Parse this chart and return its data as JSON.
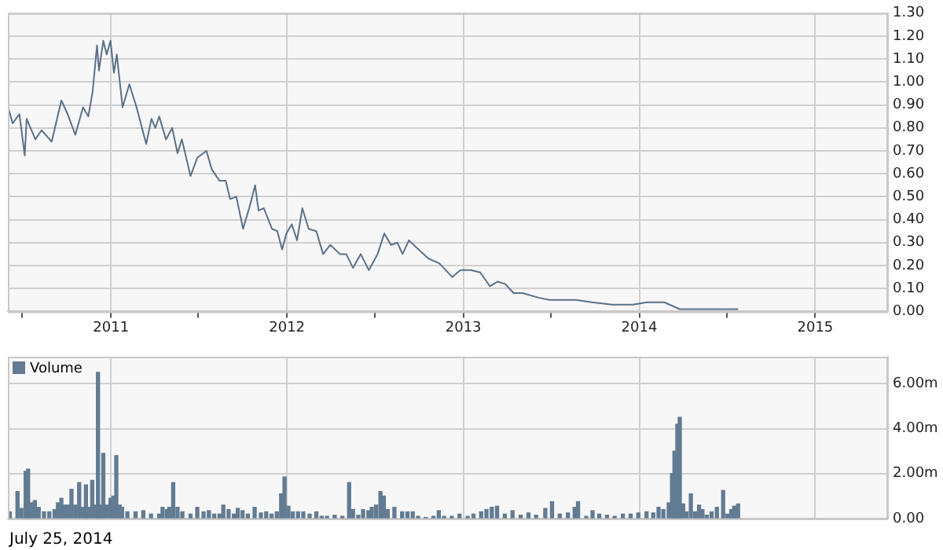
{
  "chart_data": [
    {
      "type": "line",
      "marker": "none",
      "grid": true,
      "xlim": [
        "2010-06-01",
        "2015-06-01"
      ],
      "xticks": [
        {
          "value": "2010-07-01",
          "label": null
        },
        {
          "value": "2011-01-01",
          "label": "2011"
        },
        {
          "value": "2011-07-01",
          "label": null
        },
        {
          "value": "2012-01-01",
          "label": "2012"
        },
        {
          "value": "2012-07-01",
          "label": null
        },
        {
          "value": "2013-01-01",
          "label": "2013"
        },
        {
          "value": "2013-07-01",
          "label": null
        },
        {
          "value": "2014-01-01",
          "label": "2014"
        },
        {
          "value": "2014-07-01",
          "label": null
        },
        {
          "value": "2015-01-01",
          "label": "2015"
        }
      ],
      "ylim": [
        0,
        1.3
      ],
      "yticks": [
        {
          "value": 0,
          "label": "0.00"
        },
        {
          "value": 0.1,
          "label": "0.10"
        },
        {
          "value": 0.2,
          "label": "0.20"
        },
        {
          "value": 0.3,
          "label": "0.30"
        },
        {
          "value": 0.4,
          "label": "0.40"
        },
        {
          "value": 0.5,
          "label": "0.50"
        },
        {
          "value": 0.6,
          "label": "0.60"
        },
        {
          "value": 0.7,
          "label": "0.70"
        },
        {
          "value": 0.8,
          "label": "0.80"
        },
        {
          "value": 0.9,
          "label": "0.90"
        },
        {
          "value": 1.0,
          "label": "1.00"
        },
        {
          "value": 1.1,
          "label": "1.10"
        },
        {
          "value": 1.2,
          "label": "1.20"
        },
        {
          "value": 1.3,
          "label": "1.30"
        }
      ],
      "series": [
        {
          "color": "#5a7189",
          "x": [
            "2010-06-03",
            "2010-06-11",
            "2010-06-25",
            "2010-07-06",
            "2010-07-10",
            "2010-07-28",
            "2010-08-10",
            "2010-08-31",
            "2010-09-20",
            "2010-10-03",
            "2010-10-19",
            "2010-11-04",
            "2010-11-15",
            "2010-11-24",
            "2010-12-03",
            "2010-12-07",
            "2010-12-16",
            "2010-12-23",
            "2010-12-31",
            "2011-01-07",
            "2011-01-13",
            "2011-01-25",
            "2011-02-08",
            "2011-02-23",
            "2011-03-15",
            "2011-03-26",
            "2011-04-03",
            "2011-04-11",
            "2011-04-25",
            "2011-05-08",
            "2011-05-19",
            "2011-05-28",
            "2011-06-15",
            "2011-06-29",
            "2011-07-18",
            "2011-07-29",
            "2011-08-14",
            "2011-08-27",
            "2011-09-05",
            "2011-09-18",
            "2011-10-02",
            "2011-10-16",
            "2011-10-27",
            "2011-11-03",
            "2011-11-14",
            "2011-12-01",
            "2011-12-12",
            "2011-12-22",
            "2011-12-31",
            "2012-01-11",
            "2012-01-22",
            "2012-02-02",
            "2012-02-15",
            "2012-03-02",
            "2012-03-16",
            "2012-03-31",
            "2012-04-20",
            "2012-05-03",
            "2012-05-17",
            "2012-06-02",
            "2012-06-19",
            "2012-07-07",
            "2012-07-21",
            "2012-08-04",
            "2012-08-17",
            "2012-08-28",
            "2012-09-10",
            "2012-09-30",
            "2012-10-21",
            "2012-11-12",
            "2012-12-09",
            "2012-12-26",
            "2013-01-17",
            "2013-02-05",
            "2013-02-25",
            "2013-03-13",
            "2013-03-29",
            "2013-04-15",
            "2013-05-04",
            "2013-06-06",
            "2013-06-29",
            "2013-07-21",
            "2013-08-23",
            "2013-09-25",
            "2013-11-06",
            "2013-12-18",
            "2014-01-17",
            "2014-02-22",
            "2014-03-26",
            "2014-05-11",
            "2014-06-23",
            "2014-07-25"
          ],
          "values": [
            0.88,
            0.82,
            0.86,
            0.68,
            0.84,
            0.75,
            0.79,
            0.74,
            0.92,
            0.86,
            0.77,
            0.89,
            0.85,
            0.96,
            1.16,
            1.05,
            1.18,
            1.12,
            1.18,
            1.04,
            1.12,
            0.89,
            0.99,
            0.89,
            0.73,
            0.84,
            0.8,
            0.85,
            0.75,
            0.8,
            0.69,
            0.75,
            0.59,
            0.67,
            0.7,
            0.62,
            0.57,
            0.57,
            0.49,
            0.5,
            0.36,
            0.46,
            0.55,
            0.44,
            0.45,
            0.36,
            0.35,
            0.27,
            0.34,
            0.38,
            0.31,
            0.45,
            0.36,
            0.35,
            0.25,
            0.29,
            0.25,
            0.25,
            0.19,
            0.25,
            0.18,
            0.25,
            0.34,
            0.29,
            0.3,
            0.25,
            0.31,
            0.27,
            0.23,
            0.21,
            0.15,
            0.18,
            0.18,
            0.17,
            0.11,
            0.13,
            0.12,
            0.08,
            0.08,
            0.06,
            0.05,
            0.05,
            0.05,
            0.04,
            0.03,
            0.03,
            0.04,
            0.04,
            0.01,
            0.01,
            0.01,
            0.01
          ]
        }
      ]
    },
    {
      "type": "bar",
      "grid": true,
      "legend": "top left",
      "tick_labels": "y",
      "xlim": [
        "2010-06-01",
        "2015-06-01"
      ],
      "xticks": [
        {
          "value": "2011-01-01",
          "label": null
        },
        {
          "value": "2012-01-01",
          "label": null
        },
        {
          "value": "2013-01-01",
          "label": null
        },
        {
          "value": "2014-01-01",
          "label": null
        },
        {
          "value": "2015-01-01",
          "label": null
        }
      ],
      "ylim": [
        0,
        7.2
      ],
      "yticks": [
        {
          "value": 0,
          "label": "0.00"
        },
        {
          "value": 2,
          "label": "2.00m"
        },
        {
          "value": 4,
          "label": "4.00m"
        },
        {
          "value": 6,
          "label": "6.00m"
        }
      ],
      "annotations": [
        "July 25, 2014"
      ],
      "series": [
        {
          "name": "Volume",
          "color": "#627b93",
          "x": [
            "2010-06-05",
            "2010-06-21",
            "2010-06-29",
            "2010-07-08",
            "2010-07-13",
            "2010-07-19",
            "2010-07-27",
            "2010-08-04",
            "2010-08-15",
            "2010-08-26",
            "2010-09-06",
            "2010-09-13",
            "2010-09-20",
            "2010-09-27",
            "2010-10-05",
            "2010-10-11",
            "2010-10-19",
            "2010-10-27",
            "2010-11-04",
            "2010-11-10",
            "2010-11-15",
            "2010-11-23",
            "2010-11-29",
            "2010-12-05",
            "2010-12-10",
            "2010-12-16",
            "2010-12-23",
            "2010-12-31",
            "2011-01-06",
            "2011-01-12",
            "2011-01-19",
            "2011-01-24",
            "2011-02-04",
            "2011-02-21",
            "2011-03-09",
            "2011-03-25",
            "2011-04-11",
            "2011-04-18",
            "2011-04-27",
            "2011-05-02",
            "2011-05-10",
            "2011-05-19",
            "2011-05-29",
            "2011-06-15",
            "2011-06-29",
            "2011-07-12",
            "2011-07-23",
            "2011-08-03",
            "2011-08-14",
            "2011-08-22",
            "2011-09-02",
            "2011-09-13",
            "2011-09-21",
            "2011-10-01",
            "2011-10-12",
            "2011-10-26",
            "2011-11-08",
            "2011-11-19",
            "2011-11-30",
            "2011-12-11",
            "2011-12-20",
            "2011-12-27",
            "2012-01-04",
            "2012-01-13",
            "2012-01-24",
            "2012-02-04",
            "2012-02-17",
            "2012-03-02",
            "2012-03-13",
            "2012-03-24",
            "2012-04-09",
            "2012-04-25",
            "2012-05-09",
            "2012-05-17",
            "2012-05-28",
            "2012-06-07",
            "2012-06-18",
            "2012-06-25",
            "2012-07-04",
            "2012-07-13",
            "2012-07-20",
            "2012-07-28",
            "2012-08-11",
            "2012-08-27",
            "2012-09-07",
            "2012-09-18",
            "2012-09-29",
            "2012-10-15",
            "2012-10-31",
            "2012-11-11",
            "2012-11-22",
            "2012-12-08",
            "2012-12-24",
            "2013-01-10",
            "2013-01-22",
            "2013-02-07",
            "2013-02-18",
            "2013-03-01",
            "2013-03-12",
            "2013-03-28",
            "2013-04-13",
            "2013-04-30",
            "2013-05-16",
            "2013-06-01",
            "2013-06-20",
            "2013-07-04",
            "2013-07-20",
            "2013-08-06",
            "2013-08-20",
            "2013-08-27",
            "2013-09-13",
            "2013-09-26",
            "2013-10-10",
            "2013-10-26",
            "2013-11-11",
            "2013-11-28",
            "2013-12-14",
            "2013-12-30",
            "2014-01-16",
            "2014-01-30",
            "2014-02-10",
            "2014-02-20",
            "2014-03-03",
            "2014-03-10",
            "2014-03-15",
            "2014-03-21",
            "2014-03-26",
            "2014-04-02",
            "2014-04-09",
            "2014-04-18",
            "2014-04-27",
            "2014-05-05",
            "2014-05-12",
            "2014-05-21",
            "2014-05-31",
            "2014-06-11",
            "2014-06-24",
            "2014-07-03",
            "2014-07-11",
            "2014-07-17",
            "2014-07-25"
          ],
          "values": [
            0.3,
            1.2,
            0.45,
            2.1,
            2.2,
            0.7,
            0.8,
            0.5,
            0.3,
            0.3,
            0.4,
            0.7,
            0.9,
            0.6,
            0.6,
            1.3,
            0.6,
            1.6,
            0.5,
            1.5,
            0.5,
            1.7,
            0.6,
            6.5,
            0.6,
            2.9,
            0.6,
            0.9,
            1.0,
            2.8,
            0.6,
            0.5,
            0.3,
            0.3,
            0.35,
            0.2,
            0.2,
            0.5,
            0.4,
            0.5,
            1.6,
            0.5,
            0.3,
            0.2,
            0.5,
            0.3,
            0.35,
            0.2,
            0.2,
            0.6,
            0.4,
            0.2,
            0.45,
            0.35,
            0.2,
            0.5,
            0.25,
            0.3,
            0.2,
            0.3,
            1.1,
            1.85,
            0.55,
            0.3,
            0.3,
            0.3,
            0.2,
            0.3,
            0.1,
            0.1,
            0.15,
            0.1,
            1.6,
            0.4,
            0.15,
            0.4,
            0.35,
            0.5,
            0.6,
            1.2,
            1.0,
            0.4,
            0.5,
            0.3,
            0.3,
            0.3,
            0.1,
            0.05,
            0.1,
            0.35,
            0.1,
            0.1,
            0.2,
            0.1,
            0.2,
            0.3,
            0.4,
            0.5,
            0.55,
            0.2,
            0.35,
            0.15,
            0.25,
            0.15,
            0.45,
            0.75,
            0.2,
            0.25,
            0.5,
            0.75,
            0.1,
            0.35,
            0.2,
            0.15,
            0.1,
            0.2,
            0.2,
            0.25,
            0.3,
            0.25,
            0.5,
            0.4,
            0.7,
            2.0,
            3.0,
            4.2,
            4.5,
            0.65,
            0.3,
            1.1,
            0.3,
            0.6,
            0.4,
            0.15,
            0.3,
            0.5,
            1.25,
            0.2,
            0.4,
            0.55,
            0.65
          ]
        }
      ]
    }
  ]
}
